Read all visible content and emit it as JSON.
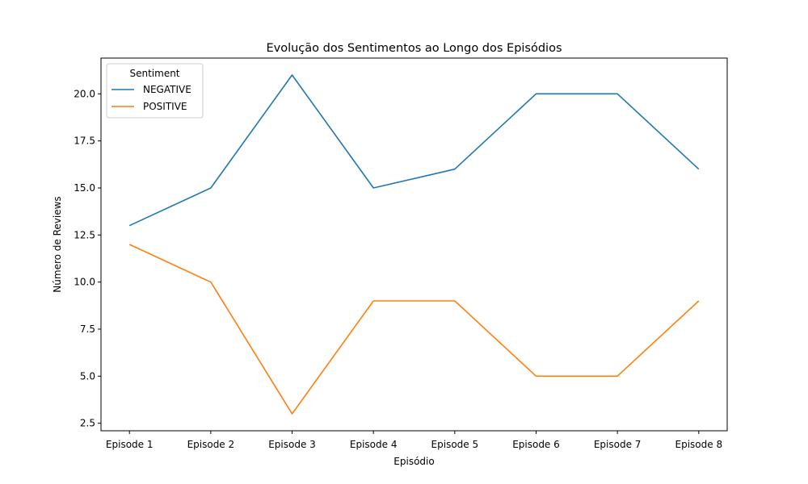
{
  "chart_data": {
    "type": "line",
    "title": "Evolução dos Sentimentos ao Longo dos Episódios",
    "xlabel": "Episódio",
    "ylabel": "Número de Reviews",
    "categories": [
      "Episode 1",
      "Episode 2",
      "Episode 3",
      "Episode 4",
      "Episode 5",
      "Episode 6",
      "Episode 7",
      "Episode 8"
    ],
    "series": [
      {
        "name": "NEGATIVE",
        "color": "#1f77b4",
        "values": [
          13,
          15,
          21,
          15,
          16,
          20,
          20,
          16
        ]
      },
      {
        "name": "POSITIVE",
        "color": "#ff7f0e",
        "values": [
          12,
          10,
          3,
          9,
          9,
          5,
          5,
          9
        ]
      }
    ],
    "ylim": [
      2.1,
      21.9
    ],
    "yticks": [
      2.5,
      5.0,
      7.5,
      10.0,
      12.5,
      15.0,
      17.5,
      20.0
    ],
    "ytick_labels": [
      "2.5",
      "5.0",
      "7.5",
      "10.0",
      "12.5",
      "15.0",
      "17.5",
      "20.0"
    ],
    "legend": {
      "title": "Sentiment",
      "position": "top-left"
    },
    "grid": false
  }
}
